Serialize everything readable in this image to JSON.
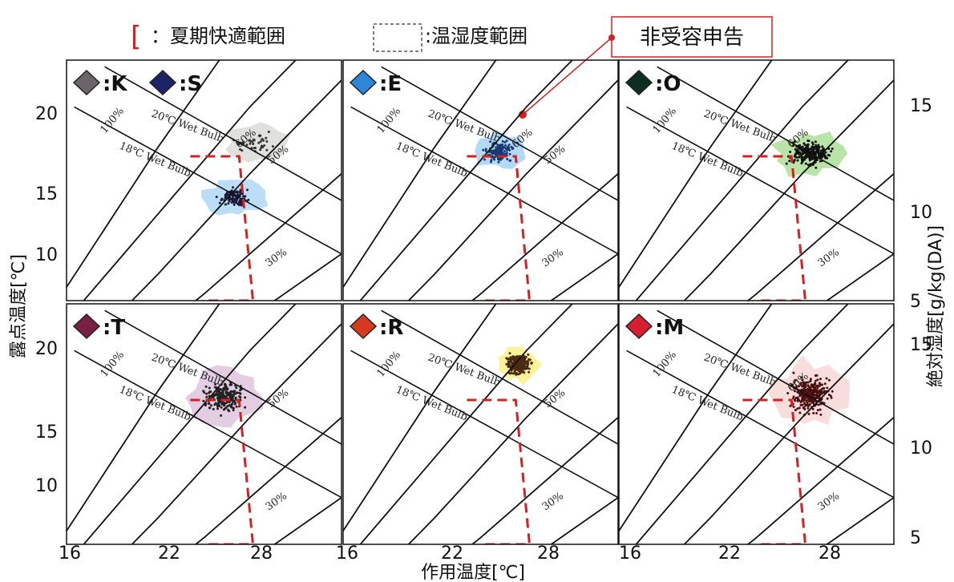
{
  "legend": {
    "comfort_symbol": "[",
    "comfort_label": "：夏期快適範囲",
    "range_label": ":温湿度範囲",
    "complaint_label": "非受容申告"
  },
  "axes": {
    "xlabel": "作用温度[℃]",
    "ylabel_left": "露点温度[℃]",
    "ylabel_right": "絶対湿度[g/kg(DA)]",
    "x_ticks": [
      "16",
      "22",
      "28",
      "16",
      "22",
      "28",
      "16",
      "22",
      "28"
    ],
    "left_ticks_top": [
      "20",
      "15",
      "10"
    ],
    "left_ticks_bottom": [
      "20",
      "15",
      "10"
    ],
    "right_ticks_top": [
      "15",
      "10",
      "5"
    ],
    "right_ticks_bottom": [
      "15",
      "10",
      "5"
    ]
  },
  "curve_labels": {
    "rh100": "100%",
    "rh60": "60%",
    "rh50": "50%",
    "rh30": "30%",
    "wb20": "20℃ Wet Bulb",
    "wb18": "18℃ Wet Bulb"
  },
  "colors": {
    "comfort": "#d42020",
    "complaint": "#d42020",
    "curve": "#111111"
  },
  "chart_data": {
    "type": "scatter",
    "xlim": [
      16,
      34
    ],
    "ylim": [
      6,
      24
    ],
    "x_ticks": [
      16,
      22,
      28
    ],
    "y_ticks": [
      10,
      15,
      20
    ],
    "comfort_range": [
      [
        24.1,
        16.8
      ],
      [
        27.3,
        16.8
      ],
      [
        28.2,
        6.0
      ],
      [
        25.2,
        6.0
      ]
    ],
    "panels": [
      {
        "id": "K",
        "label": ":K",
        "marker": "#6b6569",
        "fill": "#d8d8d4",
        "point": "#333333",
        "center": [
          28.3,
          17.8
        ],
        "spread": [
          1.6,
          1.0
        ],
        "count": 40,
        "has_60": true,
        "has_50": true
      },
      {
        "id": "S",
        "label": ":S",
        "marker": "#1c2466",
        "fill": "#aad4f2",
        "point": "#1a1a3a",
        "center": [
          27.0,
          13.7
        ],
        "spread": [
          1.5,
          1.0
        ],
        "count": 110,
        "has_60": false,
        "has_50": false
      },
      {
        "id": "E",
        "label": ":E",
        "marker": "#2e86d8",
        "fill": "#9fd0f2",
        "point": "#173a74",
        "center": [
          26.2,
          17.2
        ],
        "spread": [
          1.2,
          1.0
        ],
        "count": 150,
        "has_60": true,
        "has_50": true
      },
      {
        "id": "O",
        "label": ":O",
        "marker": "#0e2e22",
        "fill": "#a9dc92",
        "point": "#111111",
        "center": [
          28.5,
          17.0
        ],
        "spread": [
          1.8,
          1.2
        ],
        "count": 260,
        "has_60": true,
        "has_50": false
      },
      {
        "id": "T",
        "label": ":T",
        "marker": "#7a1e44",
        "fill": "#dcc0dc",
        "point": "#222222",
        "center": [
          26.3,
          17.0
        ],
        "spread": [
          1.8,
          1.5
        ],
        "count": 230,
        "has_60": false,
        "has_50": true
      },
      {
        "id": "R",
        "label": ":R",
        "marker": "#d63a1e",
        "fill": "#f9f07e",
        "point": "#4a2a10",
        "center": [
          27.5,
          19.5
        ],
        "spread": [
          1.1,
          1.0
        ],
        "count": 260,
        "has_60": false,
        "has_50": true
      },
      {
        "id": "M",
        "label": ":M",
        "marker": "#d71e30",
        "fill": "#f6d4d4",
        "point": "#4a1010",
        "center": [
          28.5,
          17.2
        ],
        "spread": [
          1.8,
          1.8
        ],
        "count": 320,
        "has_60": true,
        "has_50": false
      }
    ]
  }
}
